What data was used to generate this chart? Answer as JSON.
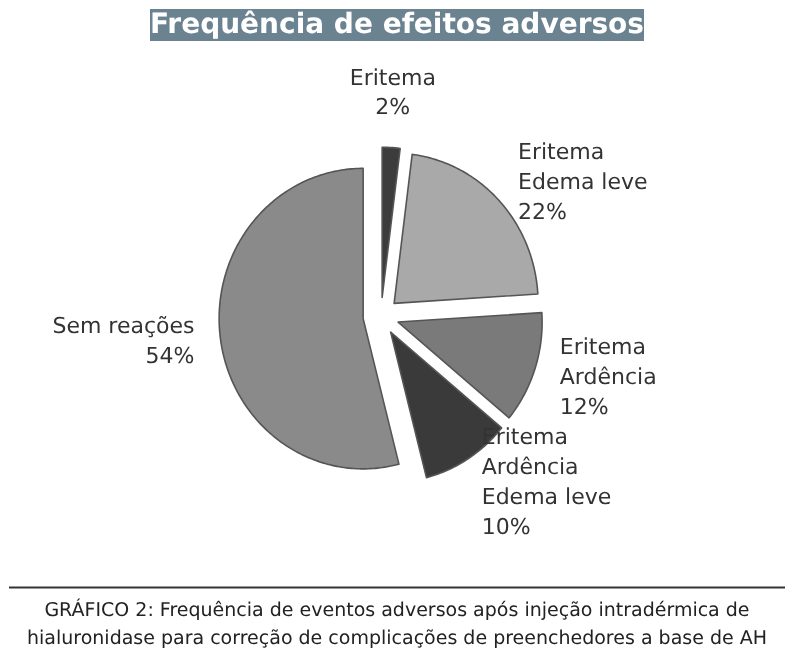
{
  "chart_data": {
    "type": "pie",
    "title": "Frequência de efeitos adversos",
    "categories": [
      "Eritema",
      "Eritema\nEdema leve",
      "Eritema\nArdência",
      "Eritema\nArdência\nEdema leve",
      "Sem reações"
    ],
    "values": [
      2,
      22,
      12,
      10,
      54
    ],
    "colors": [
      "#3c3c3c",
      "#a9a9a9",
      "#7a7a7a",
      "#3a3a3a",
      "#8a8a8a"
    ],
    "value_labels": [
      "2%",
      "22%",
      "12%",
      "10%",
      "54%"
    ],
    "annotations": [
      "GRÁFICO 2: Frequência de eventos adversos após injeção intradérmica de\nhialuronidase para correção de complicações de preenchedores a base de AH"
    ]
  }
}
